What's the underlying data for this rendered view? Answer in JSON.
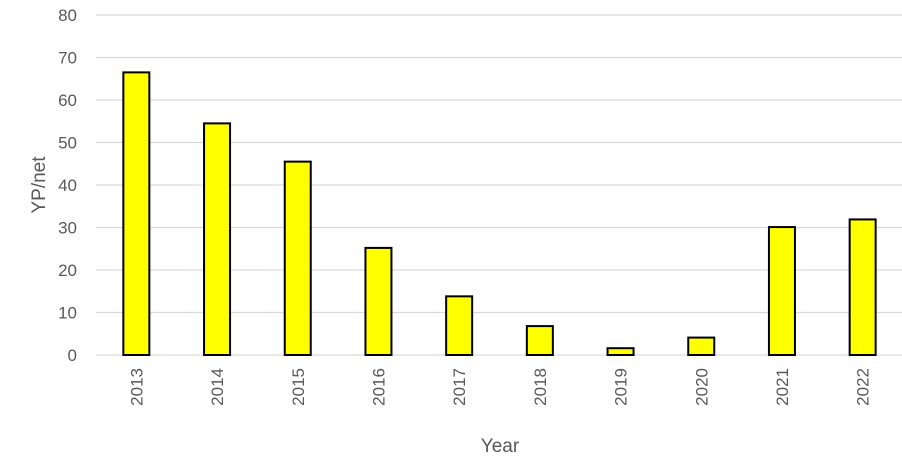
{
  "chart_data": {
    "type": "bar",
    "categories": [
      "2013",
      "2014",
      "2015",
      "2016",
      "2017",
      "2018",
      "2019",
      "2020",
      "2021",
      "2022"
    ],
    "values": [
      66.5,
      54.5,
      45.5,
      25.2,
      13.8,
      6.8,
      1.6,
      4.1,
      30.1,
      31.9
    ],
    "xlabel": "Year",
    "ylabel": "YP/net",
    "ylim": [
      0,
      80
    ],
    "yticks": [
      "0",
      "10",
      "20",
      "30",
      "40",
      "50",
      "60",
      "70",
      "80"
    ],
    "grid": true,
    "legend": "none",
    "bar_color": "#ffff00",
    "bar_edge_color": "#000000"
  }
}
